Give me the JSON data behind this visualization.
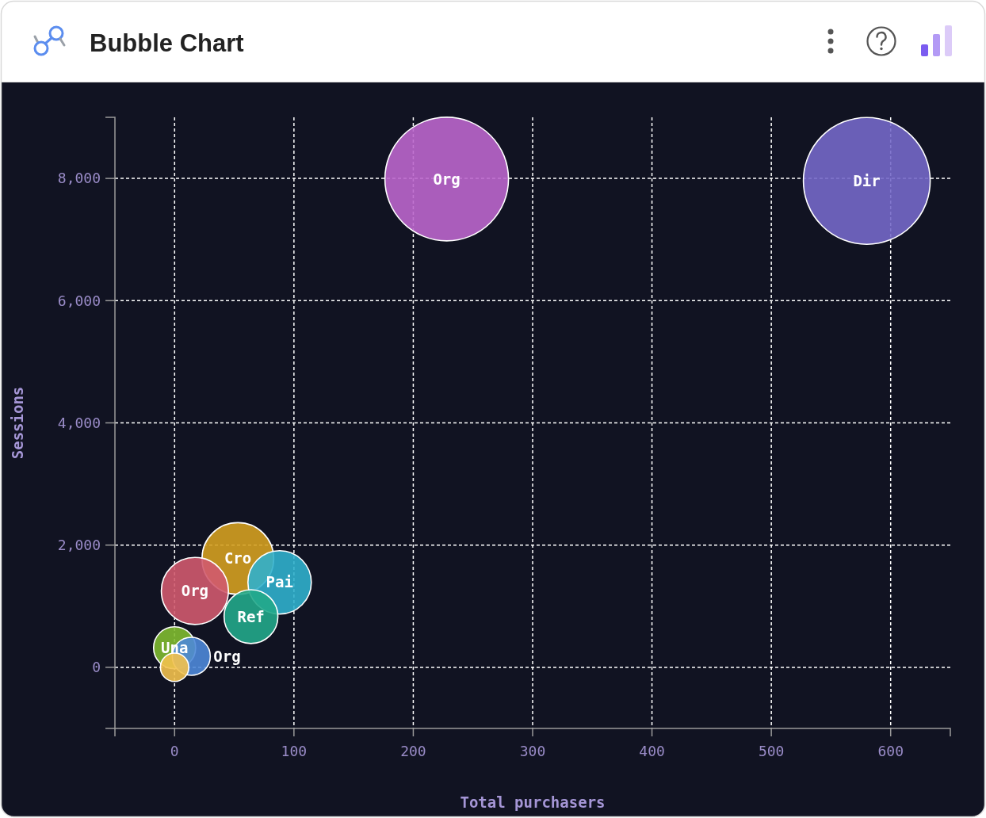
{
  "chart_data": {
    "type": "bubble",
    "title": "Bubble Chart",
    "xlabel": "Total purchasers",
    "ylabel": "Sessions",
    "xlim": [
      -50,
      650
    ],
    "xticks": [
      0,
      100,
      200,
      300,
      400,
      500,
      600
    ],
    "ylim": [
      -1000,
      9000
    ],
    "yticks": [
      0,
      {
        "value": 2000,
        "label": "2,000"
      },
      {
        "value": 4000,
        "label": "4,000"
      },
      {
        "value": 6000,
        "label": "6,000"
      },
      {
        "value": 8000,
        "label": "8,000"
      }
    ],
    "grid": true,
    "series": [
      {
        "name": "Dir",
        "color": "#7468c8",
        "x": [
          580
        ],
        "values": [
          7960
        ],
        "sizes": [
          1
        ]
      },
      {
        "name": "Org",
        "color": "#bb66cc",
        "x": [
          228
        ],
        "values": [
          7990
        ],
        "sizes": [
          0.95
        ]
      },
      {
        "name": "Cro",
        "color": "#d4a020",
        "x": [
          53
        ],
        "values": [
          1780
        ],
        "sizes": [
          0.32
        ]
      },
      {
        "name": "Org",
        "color": "#d05a6e",
        "x": [
          17
        ],
        "values": [
          1250
        ],
        "sizes": [
          0.28
        ]
      },
      {
        "name": "Pai",
        "color": "#30b0cc",
        "x": [
          88
        ],
        "values": [
          1390
        ],
        "sizes": [
          0.25
        ]
      },
      {
        "name": "Ref",
        "color": "#22a889",
        "x": [
          64
        ],
        "values": [
          830
        ],
        "sizes": [
          0.18
        ]
      },
      {
        "name": "Una",
        "color": "#80bb30",
        "x": [
          0
        ],
        "values": [
          320
        ],
        "sizes": [
          0.11
        ]
      },
      {
        "name": "Org",
        "color": "#4e88d8",
        "x": [
          14
        ],
        "values": [
          180
        ],
        "sizes": [
          0.09
        ]
      },
      {
        "color": "#f2c14e",
        "x": [
          0
        ],
        "values": [
          0
        ],
        "sizes": [
          0.05
        ]
      }
    ]
  }
}
